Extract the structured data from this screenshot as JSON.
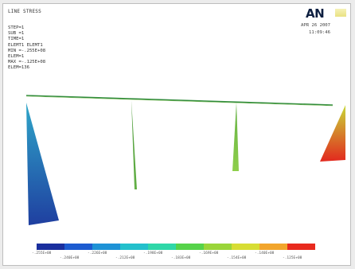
{
  "window": {
    "title": "LINE STRESS",
    "info_lines": [
      "STEP=1",
      "SUB =1",
      "TIME=1",
      "ELEMT1 ELEMT1",
      "MIN =-.255E+08",
      "ELEM=1",
      "MAX =-.125E+08",
      "ELEM=136"
    ],
    "logo": "AN",
    "date": "APR 26 2007",
    "time": "11:09:46"
  },
  "legend": {
    "colors": [
      "#1a2f9e",
      "#1c5bd0",
      "#1e92d6",
      "#23c0cc",
      "#2fd7a8",
      "#56d34a",
      "#9ad53a",
      "#d7dd34",
      "#f2a52c",
      "#e82a1e"
    ],
    "labels_top": [
      "-.255E+08",
      "-.226E+08",
      "-.198E+08",
      "-.169E+08",
      "-.140E+08"
    ],
    "labels_bottom": [
      "-.240E+08",
      "-.212E+08",
      "-.183E+08",
      "-.154E+08",
      "-.125E+08"
    ]
  },
  "model": {
    "beam_color": "#2f8a3a",
    "members": [
      {
        "name": "left-support-stress",
        "color_top": "#2ea6c9",
        "color_bottom": "#1f3fa0"
      },
      {
        "name": "column-1-stress",
        "color_top": "#4d9a3a",
        "color_bottom": "#63b046"
      },
      {
        "name": "column-2-stress",
        "color_top": "#63b046",
        "color_bottom": "#8ecf4a"
      },
      {
        "name": "right-support-stress",
        "color_top": "#c8d838",
        "color_bottom": "#e2281e"
      }
    ]
  }
}
